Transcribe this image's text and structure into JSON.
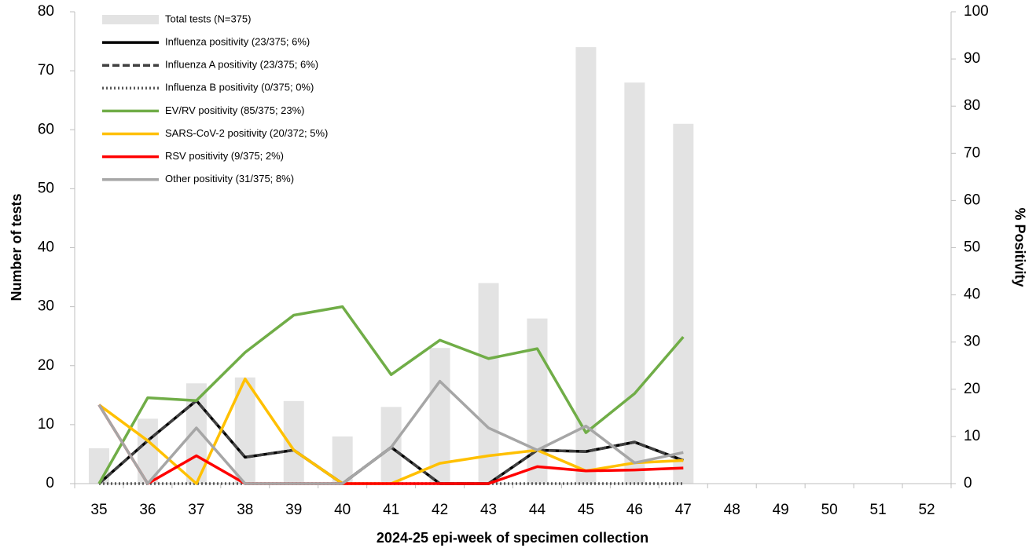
{
  "chart_data": {
    "type": "combo",
    "x_label": "2024-25 epi-week of specimen collection",
    "y_label": "Number of tests",
    "y2_label": "% Positivity",
    "categories": [
      "35",
      "36",
      "37",
      "38",
      "39",
      "40",
      "41",
      "42",
      "43",
      "44",
      "45",
      "46",
      "47",
      "48",
      "49",
      "50",
      "51",
      "52"
    ],
    "ylim": [
      0,
      80
    ],
    "yticks": [
      0,
      10,
      20,
      30,
      40,
      50,
      60,
      70,
      80
    ],
    "y2lim": [
      0,
      100
    ],
    "y2ticks": [
      0,
      10,
      20,
      30,
      40,
      50,
      60,
      70,
      80,
      90,
      100
    ],
    "legend": "upper left",
    "series": [
      {
        "name": "Total tests (N=375)",
        "type": "bar",
        "color": "#e3e3e3",
        "values": [
          6,
          11,
          17,
          18,
          14,
          8,
          13,
          23,
          34,
          28,
          74,
          68,
          61,
          null,
          null,
          null,
          null,
          null
        ]
      },
      {
        "name": "Influenza positivity (23/375; 6%)",
        "type": "line",
        "axis": "y2",
        "color": "#000000",
        "dash": "solid",
        "values": [
          0,
          9.1,
          17.6,
          5.6,
          7.1,
          0,
          7.7,
          0,
          0,
          7.1,
          6.8,
          8.8,
          4.9,
          null,
          null,
          null,
          null,
          null
        ]
      },
      {
        "name": "Influenza A positivity (23/375; 6%)",
        "type": "line",
        "axis": "y2",
        "color": "#404040",
        "dash": "dashed",
        "values": [
          0,
          9.1,
          17.6,
          5.6,
          7.1,
          0,
          7.7,
          0,
          0,
          7.1,
          6.8,
          8.8,
          4.9,
          null,
          null,
          null,
          null,
          null
        ]
      },
      {
        "name": "Influenza B positivity (0/375; 0%)",
        "type": "line",
        "axis": "y2",
        "color": "#595959",
        "dash": "dotted",
        "values": [
          0,
          0,
          0,
          0,
          0,
          0,
          0,
          0,
          0,
          0,
          0,
          0,
          0,
          null,
          null,
          null,
          null,
          null
        ]
      },
      {
        "name": "EV/RV positivity (85/375; 23%)",
        "type": "line",
        "axis": "y2",
        "color": "#70ad47",
        "dash": "solid",
        "values": [
          0,
          18.2,
          17.6,
          27.8,
          35.7,
          37.5,
          23.1,
          30.4,
          26.5,
          28.6,
          10.8,
          19.1,
          31.1,
          null,
          null,
          null,
          null,
          null
        ]
      },
      {
        "name": "SARS-CoV-2 positivity (20/372; 5%)",
        "type": "line",
        "axis": "y2",
        "color": "#ffc000",
        "dash": "solid",
        "values": [
          16.7,
          9.1,
          0,
          22.2,
          7.1,
          0,
          0,
          4.3,
          5.9,
          7.1,
          2.7,
          4.4,
          4.9,
          null,
          null,
          null,
          null,
          null
        ]
      },
      {
        "name": "RSV positivity (9/375; 2%)",
        "type": "line",
        "axis": "y2",
        "color": "#ff0000",
        "dash": "solid",
        "values": [
          16.7,
          0,
          5.9,
          0,
          0,
          0,
          0,
          0,
          0,
          3.6,
          2.7,
          2.9,
          3.3,
          null,
          null,
          null,
          null,
          null
        ]
      },
      {
        "name": "Other positivity (31/375; 8%)",
        "type": "line",
        "axis": "y2",
        "color": "#a6a6a6",
        "dash": "solid",
        "values": [
          16.7,
          0,
          11.8,
          0,
          0,
          0,
          7.7,
          21.7,
          11.8,
          7.1,
          12.2,
          4.4,
          6.6,
          null,
          null,
          null,
          null,
          null
        ]
      }
    ]
  }
}
